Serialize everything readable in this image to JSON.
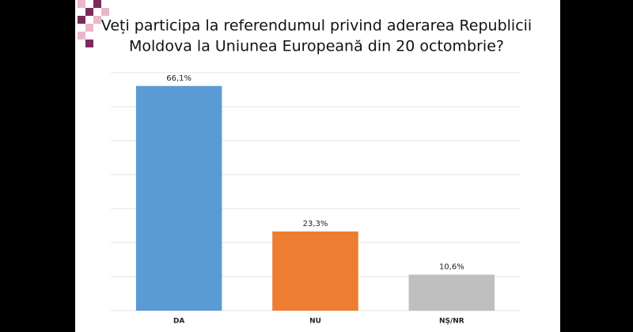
{
  "chart_data": {
    "type": "bar",
    "title": "Veți participa la referendumul privind aderarea Republicii",
    "subtitle": "Moldova la Uniunea Europeană din 20 octombrie?",
    "categories": [
      "DA",
      "NU",
      "NŞ/NR"
    ],
    "values": [
      66.1,
      23.3,
      10.6
    ],
    "value_labels": [
      "66,1%",
      "23,3%",
      "10,6%"
    ],
    "colors": [
      "#5b9bd5",
      "#ed7d31",
      "#bfbfbf"
    ],
    "ylim": [
      0,
      70
    ],
    "yticks": [
      0,
      10,
      20,
      30,
      40,
      50,
      60,
      70
    ],
    "grid": true
  }
}
